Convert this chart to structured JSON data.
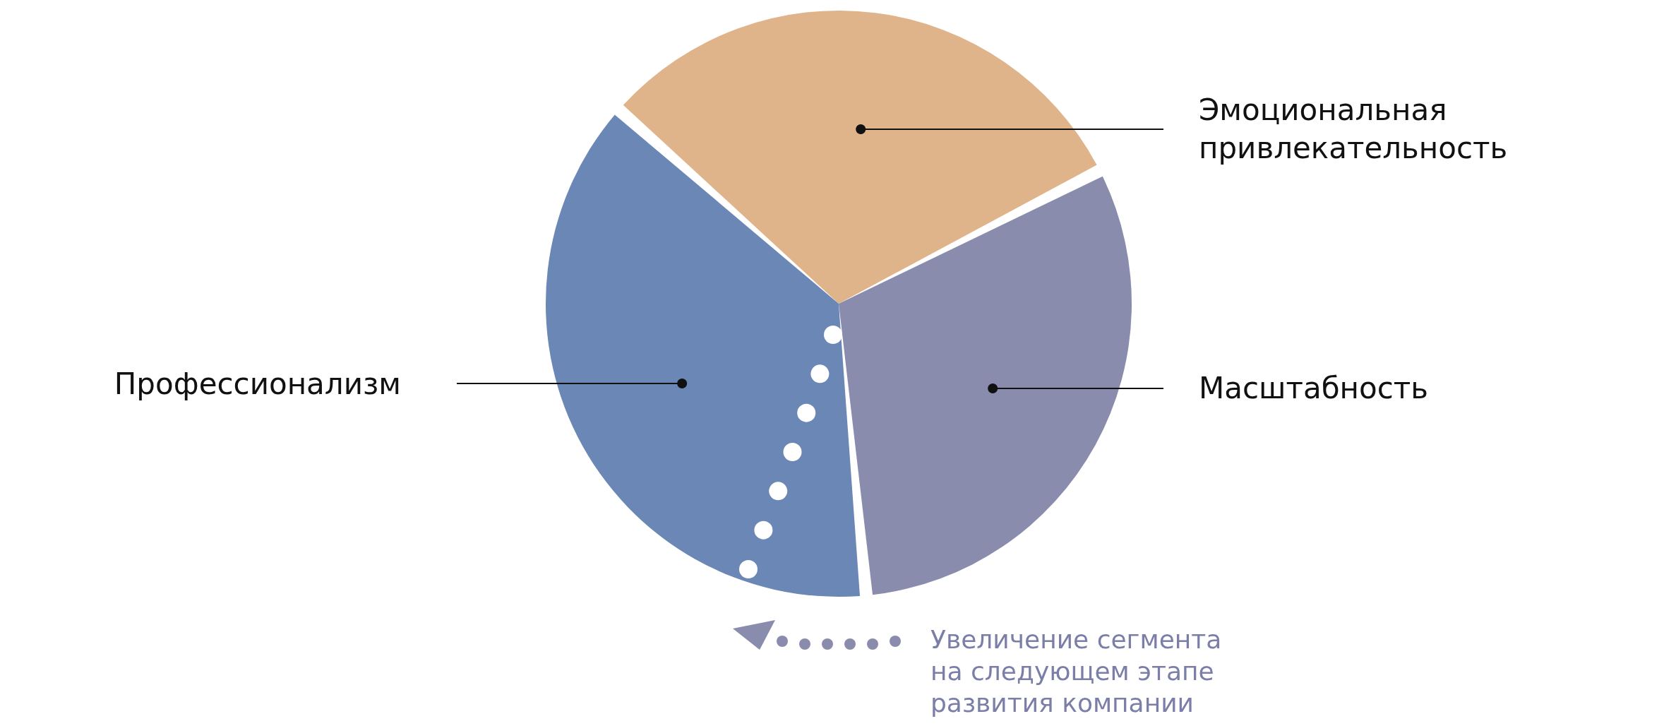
{
  "chart_data": {
    "type": "pie",
    "categories": [
      "Эмоциональная привлекательность",
      "Масштабность",
      "Профессионализм"
    ],
    "values": [
      31,
      31,
      38
    ],
    "colors": [
      "#e0b48a",
      "#8a8cad",
      "#6b87b5"
    ],
    "legend": false,
    "annotations": [
      "Увеличение сегмента\nна следующем этапе\nразвития компании"
    ]
  }
}
